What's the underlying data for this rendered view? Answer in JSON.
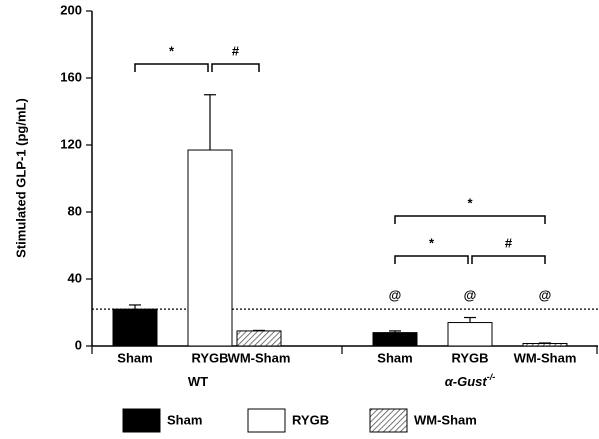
{
  "chart_data": {
    "type": "grouped_bar",
    "ylabel": "Stimulated GLP-1 (pg/mL)",
    "ylim": [
      0,
      200
    ],
    "yticks": [
      0,
      40,
      80,
      120,
      160,
      200
    ],
    "categories": [
      "WT",
      "α-Gust"
    ],
    "category_superscripts": [
      null,
      "-/-"
    ],
    "series": [
      {
        "name": "Sham",
        "color": "#000000",
        "values": [
          22,
          8
        ],
        "errors": [
          2.5,
          1
        ]
      },
      {
        "name": "RYGB",
        "color": "#ffffff",
        "values": [
          117,
          14
        ],
        "errors": [
          33,
          3
        ]
      },
      {
        "name": "WM-Sham",
        "color": "#ffffff",
        "pattern": "hatch",
        "values": [
          9,
          1.5
        ],
        "errors": [
          0.3,
          0.3
        ]
      }
    ],
    "reference_line": 22,
    "brackets": [
      {
        "label": "*",
        "category": 0,
        "from": 0,
        "to": 1
      },
      {
        "label": "#",
        "category": 0,
        "from": 1,
        "to": 2
      },
      {
        "label": "*",
        "category": 1,
        "from": 0,
        "to": 2
      },
      {
        "label": "*",
        "category": 1,
        "from": 0,
        "to": 1
      },
      {
        "label": "#",
        "category": 1,
        "from": 1,
        "to": 2
      }
    ],
    "bar_annotations": [
      {
        "label": "@",
        "category": 1,
        "series": 0
      },
      {
        "label": "@",
        "category": 1,
        "series": 1
      },
      {
        "label": "@",
        "category": 1,
        "series": 2
      }
    ]
  }
}
